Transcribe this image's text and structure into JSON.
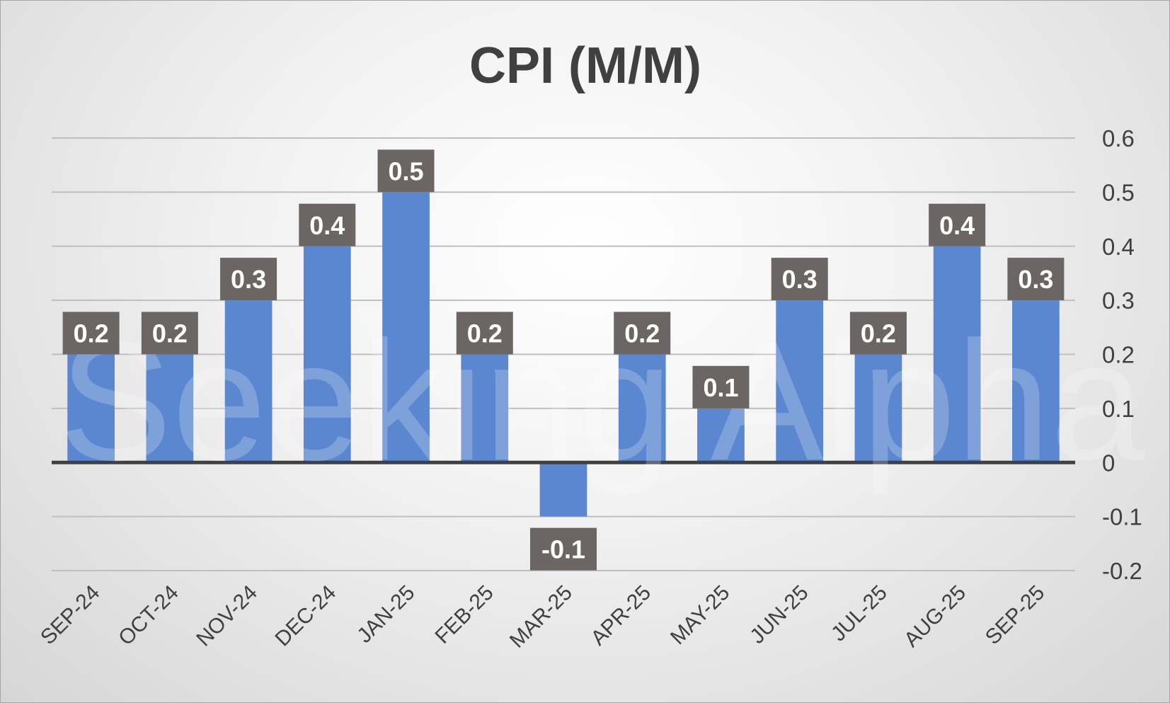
{
  "chart_data": {
    "type": "bar",
    "title": "CPI (M/M)",
    "categories": [
      "SEP-24",
      "OCT-24",
      "NOV-24",
      "DEC-24",
      "JAN-25",
      "FEB-25",
      "MAR-25",
      "APR-25",
      "MAY-25",
      "JUN-25",
      "JUL-25",
      "AUG-25",
      "SEP-25"
    ],
    "values": [
      0.2,
      0.2,
      0.3,
      0.4,
      0.5,
      0.2,
      -0.1,
      0.2,
      0.1,
      0.3,
      0.2,
      0.4,
      0.3
    ],
    "data_labels": [
      "0.2",
      "0.2",
      "0.3",
      "0.4",
      "0.5",
      "0.2",
      "-0.1",
      "0.2",
      "0.1",
      "0.3",
      "0.2",
      "0.4",
      "0.3"
    ],
    "y_ticks": [
      0.6,
      0.5,
      0.4,
      0.3,
      0.2,
      0.1,
      0,
      -0.1,
      -0.2
    ],
    "y_tick_labels": [
      "0.6",
      "0.5",
      "0.4",
      "0.3",
      "0.2",
      "0.1",
      "0",
      "-0.1",
      "-0.2"
    ],
    "ylim": [
      -0.2,
      0.6
    ],
    "xlabel": "",
    "ylabel": "",
    "y_axis_side": "right",
    "grid": true,
    "legend": "none",
    "bar_color": "#5b87d0",
    "label_box_color": "#6b6664"
  },
  "watermark": "Seeking Alpha"
}
